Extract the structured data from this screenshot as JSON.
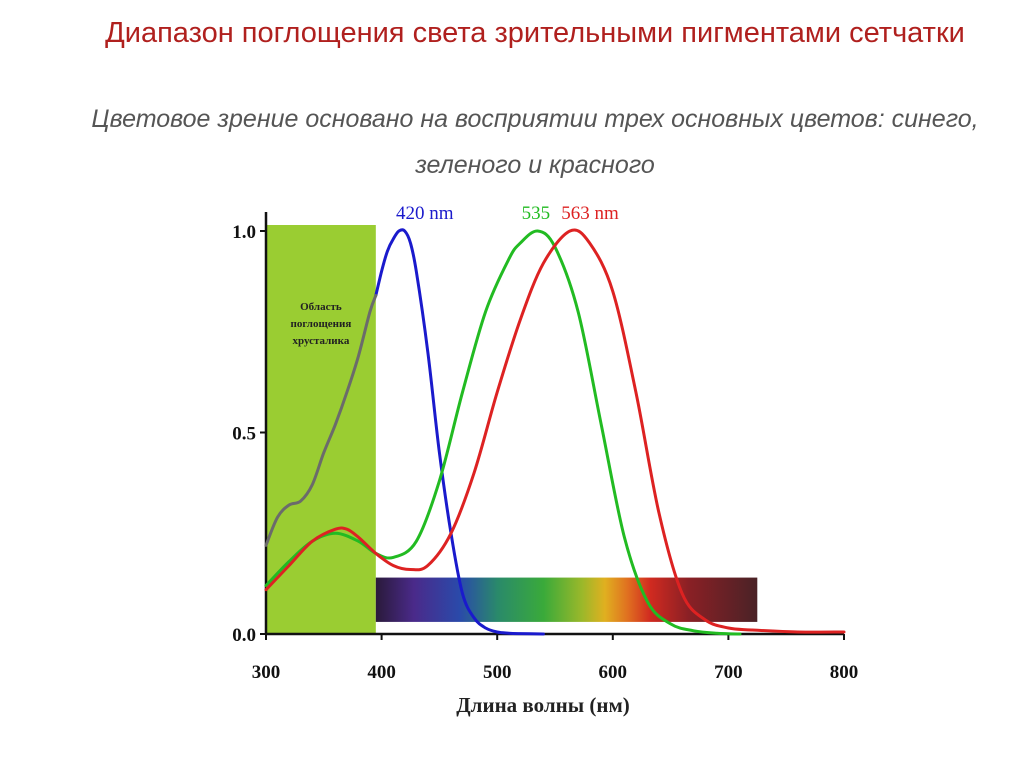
{
  "slide": {
    "title": "Диапазон поглощения света зрительными пигментами сетчатки",
    "subtitle": "Цветовое зрение основано на восприятии трех  основных цветов: синего, зеленого и красного"
  },
  "chart_data": {
    "type": "line",
    "title": "",
    "xlabel": "Длина волны (нм)",
    "ylabel": "",
    "xlim": [
      300,
      800
    ],
    "ylim": [
      0,
      1.0
    ],
    "x_ticks": [
      300,
      400,
      500,
      600,
      700,
      800
    ],
    "y_ticks": [
      {
        "value": 0.0,
        "label": "0.0"
      },
      {
        "value": 0.5,
        "label": "0.5"
      },
      {
        "value": 1.0,
        "label": "1.0"
      }
    ],
    "grid": false,
    "shaded_region": {
      "x_range": [
        300,
        395
      ],
      "color": "#9acd32",
      "label_lines": [
        "Область",
        "поглощения",
        "хрусталика"
      ]
    },
    "spectrum_bar": {
      "x_range": [
        395,
        725
      ],
      "y_range": [
        0.03,
        0.14
      ]
    },
    "peak_labels": [
      {
        "text": "420 nm",
        "x": 420,
        "color": "#1a1acc"
      },
      {
        "text": "535",
        "x": 535,
        "color": "#22bb22"
      },
      {
        "text": "563 nm",
        "x": 563,
        "color": "#dd2222"
      }
    ],
    "series": [
      {
        "color": "#1a1acc",
        "x": [
          395,
          400,
          405,
          410,
          415,
          420,
          425,
          430,
          440,
          450,
          460,
          470,
          480,
          490,
          500,
          510,
          520,
          540
        ],
        "y": [
          0.84,
          0.9,
          0.95,
          0.98,
          1.0,
          1.0,
          0.97,
          0.9,
          0.7,
          0.45,
          0.25,
          0.1,
          0.04,
          0.015,
          0.005,
          0.002,
          0.001,
          0.0
        ]
      },
      {
        "color": "#22bb22",
        "x": [
          300,
          320,
          340,
          360,
          380,
          395,
          410,
          430,
          450,
          470,
          490,
          510,
          520,
          535,
          550,
          570,
          590,
          610,
          630,
          650,
          670,
          690,
          710
        ],
        "y": [
          0.12,
          0.18,
          0.23,
          0.25,
          0.23,
          0.2,
          0.19,
          0.23,
          0.38,
          0.6,
          0.8,
          0.93,
          0.97,
          1.0,
          0.96,
          0.8,
          0.52,
          0.24,
          0.08,
          0.025,
          0.008,
          0.002,
          0.0
        ]
      },
      {
        "color": "#dd2222",
        "x": [
          300,
          320,
          340,
          360,
          370,
          380,
          395,
          410,
          425,
          440,
          460,
          480,
          500,
          520,
          540,
          563,
          580,
          600,
          620,
          640,
          660,
          680,
          700,
          720,
          760,
          800
        ],
        "y": [
          0.11,
          0.17,
          0.23,
          0.26,
          0.26,
          0.24,
          0.2,
          0.17,
          0.16,
          0.17,
          0.25,
          0.4,
          0.6,
          0.78,
          0.92,
          1.0,
          0.97,
          0.85,
          0.6,
          0.3,
          0.1,
          0.035,
          0.015,
          0.01,
          0.005,
          0.005
        ]
      },
      {
        "color": "#6b6b6b",
        "x": [
          300,
          310,
          320,
          330,
          340,
          350,
          360,
          370,
          380,
          390,
          395
        ],
        "y": [
          0.22,
          0.29,
          0.32,
          0.33,
          0.37,
          0.45,
          0.52,
          0.6,
          0.69,
          0.8,
          0.84
        ]
      }
    ]
  }
}
